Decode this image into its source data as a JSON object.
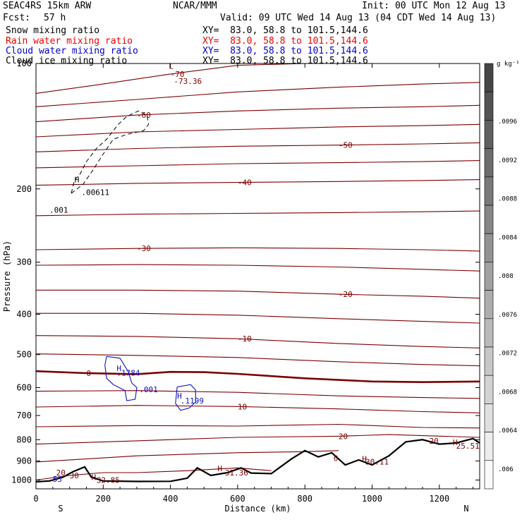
{
  "header": {
    "left1": "SEAC4RS 15km ARW",
    "center1": "NCAR/MMM",
    "right1": "Init: 00 UTC Mon 12 Aug 13",
    "fcst_label": "Fcst:",
    "fcst_value": "57 h",
    "valid": "Valid: 09 UTC Wed 14 Aug 13 (04 CDT Wed 14 Aug 13)"
  },
  "fields": [
    {
      "name": "Snow mixing ratio",
      "xy": "XY=  83.0, 58.8 to 101.5,144.6",
      "color": "#000000"
    },
    {
      "name": "Rain water mixing ratio",
      "xy": "XY=  83.0, 58.8 to 101.5,144.6",
      "color": "#ee0000"
    },
    {
      "name": "Cloud water mixing ratio",
      "xy": "XY=  83.0, 58.8 to 101.5,144.6",
      "color": "#0000cc"
    },
    {
      "name": "Cloud ice mixing ratio",
      "xy": "XY=  83.0, 58.8 to 101.5,144.6",
      "color": "#000000"
    }
  ],
  "colors": {
    "temperature": "#7a0000",
    "cloud_water": "#1010c0",
    "snow": "#000000",
    "terrain": "#000000"
  },
  "chart_data": {
    "type": "line",
    "title": "",
    "xlabel": "Distance (km)",
    "ylabel": "Pressure (hPa)",
    "xlim": [
      0,
      1320
    ],
    "ylim": [
      1050,
      100
    ],
    "y_scale": "log",
    "x_ticks": [
      0,
      200,
      400,
      600,
      800,
      1000,
      1200
    ],
    "y_ticks": [
      200,
      300,
      400,
      500,
      600,
      700,
      800,
      900,
      1000
    ],
    "y_top_label": "100",
    "end_labels": {
      "left": "S",
      "right": "N"
    },
    "colorbar": {
      "unit": "g kg⁻¹",
      "labels": [
        ".0096",
        ".0092",
        ".0088",
        ".0084",
        ".008",
        ".0076",
        ".0072",
        ".0068",
        ".0064",
        ".006"
      ]
    },
    "temperature_contours": [
      {
        "level": -70,
        "label": "-70",
        "points": [
          [
            0,
            118
          ],
          [
            200,
            112
          ],
          [
            400,
            106
          ],
          [
            600,
            101
          ],
          [
            800,
            100
          ],
          [
            1000,
            100
          ],
          [
            1250,
            100
          ]
        ]
      },
      {
        "level": -65,
        "label": "",
        "points": [
          [
            0,
            127
          ],
          [
            300,
            122
          ],
          [
            600,
            117
          ],
          [
            900,
            114
          ],
          [
            1150,
            112
          ],
          [
            1320,
            111
          ]
        ]
      },
      {
        "level": -60,
        "label": "-60",
        "points": [
          [
            0,
            138
          ],
          [
            300,
            133
          ],
          [
            600,
            130
          ],
          [
            900,
            128
          ],
          [
            1150,
            127
          ],
          [
            1320,
            126
          ]
        ]
      },
      {
        "level": -55,
        "label": "",
        "points": [
          [
            0,
            150
          ],
          [
            300,
            146
          ],
          [
            600,
            144
          ],
          [
            900,
            142
          ],
          [
            1150,
            141
          ],
          [
            1320,
            140
          ]
        ]
      },
      {
        "level": -50,
        "label": "-50",
        "points": [
          [
            0,
            163
          ],
          [
            300,
            160
          ],
          [
            600,
            158
          ],
          [
            900,
            157
          ],
          [
            1150,
            156
          ],
          [
            1320,
            155
          ]
        ]
      },
      {
        "level": -45,
        "label": "",
        "points": [
          [
            0,
            178
          ],
          [
            300,
            176
          ],
          [
            600,
            174
          ],
          [
            900,
            173
          ],
          [
            1150,
            172
          ],
          [
            1320,
            171
          ]
        ]
      },
      {
        "level": -40,
        "label": "-40",
        "points": [
          [
            0,
            196
          ],
          [
            300,
            194
          ],
          [
            600,
            193
          ],
          [
            900,
            192
          ],
          [
            1150,
            191
          ],
          [
            1320,
            190
          ]
        ]
      },
      {
        "level": -35,
        "label": "",
        "points": [
          [
            0,
            232
          ],
          [
            300,
            230
          ],
          [
            600,
            229
          ],
          [
            900,
            228
          ],
          [
            1150,
            227
          ],
          [
            1320,
            226
          ]
        ]
      },
      {
        "level": -30,
        "label": "-30",
        "points": [
          [
            0,
            280
          ],
          [
            300,
            278
          ],
          [
            600,
            277
          ],
          [
            900,
            278
          ],
          [
            1150,
            280
          ],
          [
            1320,
            282
          ]
        ]
      },
      {
        "level": -25,
        "label": "",
        "points": [
          [
            0,
            305
          ],
          [
            300,
            304
          ],
          [
            600,
            305
          ],
          [
            900,
            308
          ],
          [
            1150,
            312
          ],
          [
            1320,
            315
          ]
        ]
      },
      {
        "level": -20,
        "label": "-20",
        "points": [
          [
            0,
            350
          ],
          [
            300,
            350
          ],
          [
            600,
            352
          ],
          [
            900,
            358
          ],
          [
            1150,
            362
          ],
          [
            1320,
            366
          ]
        ]
      },
      {
        "level": -15,
        "label": "",
        "points": [
          [
            0,
            398
          ],
          [
            300,
            398
          ],
          [
            600,
            402
          ],
          [
            900,
            410
          ],
          [
            1150,
            416
          ],
          [
            1320,
            420
          ]
        ]
      },
      {
        "level": -10,
        "label": "-10",
        "points": [
          [
            0,
            450
          ],
          [
            300,
            452
          ],
          [
            600,
            458
          ],
          [
            900,
            470
          ],
          [
            1150,
            478
          ],
          [
            1320,
            482
          ]
        ]
      },
      {
        "level": -5,
        "label": "",
        "points": [
          [
            0,
            498
          ],
          [
            300,
            502
          ],
          [
            600,
            508
          ],
          [
            900,
            520
          ],
          [
            1150,
            528
          ],
          [
            1320,
            532
          ]
        ]
      },
      {
        "level": 0,
        "label": "0",
        "points": [
          [
            0,
            548
          ],
          [
            150,
            554
          ],
          [
            300,
            557
          ],
          [
            400,
            550
          ],
          [
            500,
            551
          ],
          [
            600,
            556
          ],
          [
            800,
            570
          ],
          [
            1000,
            580
          ],
          [
            1150,
            582
          ],
          [
            1320,
            580
          ]
        ]
      },
      {
        "level": 5,
        "label": "",
        "points": [
          [
            0,
            612
          ],
          [
            300,
            610
          ],
          [
            600,
            616
          ],
          [
            900,
            628
          ],
          [
            1150,
            634
          ],
          [
            1320,
            637
          ]
        ]
      },
      {
        "level": 10,
        "label": "10",
        "points": [
          [
            0,
            668
          ],
          [
            300,
            662
          ],
          [
            600,
            666
          ],
          [
            900,
            675
          ],
          [
            1150,
            685
          ],
          [
            1320,
            690
          ]
        ]
      },
      {
        "level": 15,
        "label": "",
        "points": [
          [
            0,
            745
          ],
          [
            300,
            740
          ],
          [
            600,
            742
          ],
          [
            900,
            735
          ],
          [
            1150,
            748
          ],
          [
            1320,
            750
          ]
        ]
      },
      {
        "level": 20,
        "label": "20",
        "points": [
          [
            0,
            820
          ],
          [
            300,
            805
          ],
          [
            600,
            790
          ],
          [
            900,
            785
          ],
          [
            1050,
            778
          ],
          [
            1320,
            790
          ]
        ]
      },
      {
        "level": 25,
        "label": "",
        "points": [
          [
            0,
            905
          ],
          [
            300,
            875
          ],
          [
            600,
            860
          ],
          [
            800,
            855
          ],
          [
            900,
            850
          ]
        ]
      },
      {
        "level": 30,
        "label": "30",
        "points": [
          [
            0,
            1000
          ],
          [
            100,
            975
          ],
          [
            200,
            960
          ],
          [
            300,
            960
          ],
          [
            450,
            950
          ],
          [
            600,
            935
          ],
          [
            700,
            950
          ]
        ]
      }
    ],
    "cloud_water_contours": [
      {
        "label": ".1784",
        "points": [
          [
            210,
            505
          ],
          [
            250,
            510
          ],
          [
            275,
            550
          ],
          [
            285,
            585
          ],
          [
            300,
            600
          ],
          [
            295,
            640
          ],
          [
            270,
            645
          ],
          [
            265,
            610
          ],
          [
            230,
            590
          ],
          [
            210,
            570
          ],
          [
            205,
            530
          ],
          [
            210,
            505
          ]
        ]
      },
      {
        "label": ".1199",
        "points": [
          [
            420,
            598
          ],
          [
            460,
            590
          ],
          [
            475,
            608
          ],
          [
            475,
            650
          ],
          [
            455,
            672
          ],
          [
            430,
            680
          ],
          [
            415,
            655
          ],
          [
            418,
            620
          ],
          [
            420,
            598
          ]
        ]
      }
    ],
    "cloud_ice_contours": [
      {
        "label": ".00611",
        "points": [
          [
            105,
            205
          ],
          [
            140,
            195
          ],
          [
            170,
            180
          ],
          [
            200,
            165
          ],
          [
            230,
            152
          ],
          [
            270,
            148
          ],
          [
            320,
            145
          ],
          [
            335,
            140
          ],
          [
            330,
            133
          ],
          [
            305,
            130
          ],
          [
            270,
            134
          ],
          [
            245,
            140
          ],
          [
            210,
            152
          ],
          [
            180,
            160
          ],
          [
            150,
            172
          ],
          [
            130,
            185
          ],
          [
            115,
            190
          ],
          [
            105,
            205
          ]
        ]
      }
    ],
    "terrain": [
      [
        0,
        1010
      ],
      [
        40,
        1005
      ],
      [
        80,
        985
      ],
      [
        110,
        955
      ],
      [
        145,
        930
      ],
      [
        165,
        985
      ],
      [
        200,
        1005
      ],
      [
        300,
        1008
      ],
      [
        400,
        1007
      ],
      [
        450,
        990
      ],
      [
        480,
        935
      ],
      [
        520,
        975
      ],
      [
        570,
        960
      ],
      [
        610,
        935
      ],
      [
        640,
        962
      ],
      [
        700,
        965
      ],
      [
        760,
        890
      ],
      [
        800,
        850
      ],
      [
        840,
        880
      ],
      [
        880,
        860
      ],
      [
        920,
        920
      ],
      [
        960,
        895
      ],
      [
        1000,
        920
      ],
      [
        1050,
        875
      ],
      [
        1100,
        810
      ],
      [
        1150,
        800
      ],
      [
        1200,
        820
      ],
      [
        1250,
        815
      ],
      [
        1300,
        795
      ],
      [
        1320,
        815
      ]
    ],
    "text_labels": [
      {
        "x": 395,
        "p": 103,
        "text": "L",
        "group": "temperature"
      },
      {
        "x": 410,
        "p": 112,
        "text": "-73.36",
        "group": "temperature"
      },
      {
        "x": 115,
        "p": 193,
        "text": "H",
        "group": "snow"
      },
      {
        "x": 135,
        "p": 207,
        "text": ".00611",
        "group": "snow"
      },
      {
        "x": 40,
        "p": 228,
        "text": ".001",
        "group": "snow"
      },
      {
        "x": 240,
        "p": 548,
        "text": "H",
        "group": "cloud_water"
      },
      {
        "x": 240,
        "p": 561,
        "text": ".1784",
        "group": "cloud_water"
      },
      {
        "x": 307,
        "p": 615,
        "text": ".001",
        "group": "cloud_water"
      },
      {
        "x": 420,
        "p": 638,
        "text": "H",
        "group": "cloud_water"
      },
      {
        "x": 430,
        "p": 655,
        "text": ".1199",
        "group": "cloud_water"
      },
      {
        "x": 540,
        "p": 952,
        "text": "H",
        "group": "temperature"
      },
      {
        "x": 562,
        "p": 975,
        "text": "31.36",
        "group": "temperature"
      },
      {
        "x": 165,
        "p": 1000,
        "text": "H",
        "group": "temperature"
      },
      {
        "x": 180,
        "p": 1015,
        "text": "32.85",
        "group": "temperature"
      },
      {
        "x": 970,
        "p": 903,
        "text": "H",
        "group": "temperature"
      },
      {
        "x": 980,
        "p": 918,
        "text": "30.11",
        "group": "temperature"
      },
      {
        "x": 1240,
        "p": 825,
        "text": "H",
        "group": "temperature"
      },
      {
        "x": 1250,
        "p": 840,
        "text": "25.51",
        "group": "temperature"
      },
      {
        "x": 885,
        "p": 900,
        "text": "0",
        "group": "temperature"
      },
      {
        "x": 1170,
        "p": 818,
        "text": "20",
        "group": "temperature"
      },
      {
        "x": 60,
        "p": 975,
        "text": "20",
        "group": "temperature"
      },
      {
        "x": 50,
        "p": 1010,
        "text": "53",
        "group": "cloud_water"
      }
    ]
  }
}
